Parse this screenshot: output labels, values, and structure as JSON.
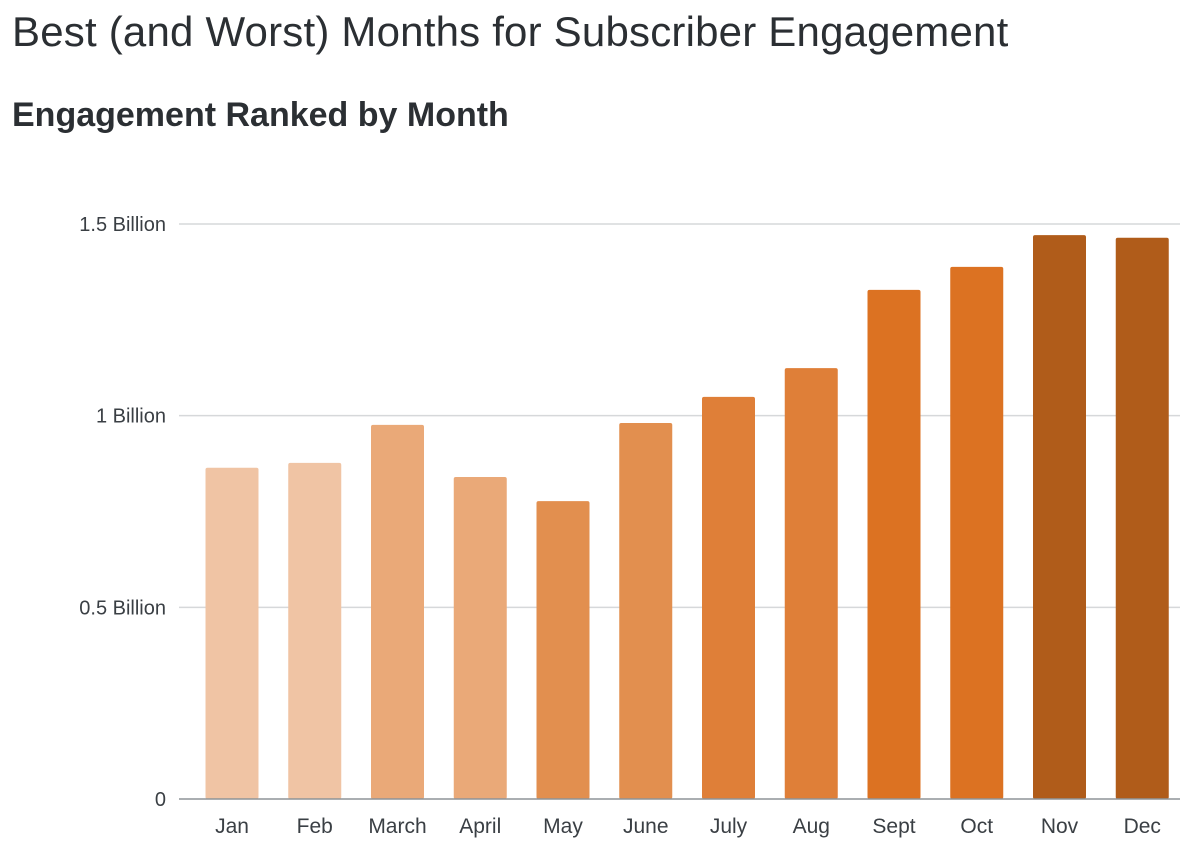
{
  "title": "Best (and Worst) Months for Subscriber Engagement",
  "subtitle": "Engagement Ranked by Month",
  "chart_data": {
    "type": "bar",
    "title": "Engagement Ranked by Month",
    "xlabel": "",
    "ylabel": "",
    "categories": [
      "Jan",
      "Feb",
      "March",
      "April",
      "May",
      "June",
      "July",
      "Aug",
      "Sept",
      "Oct",
      "Nov",
      "Dec"
    ],
    "values": [
      0.864,
      0.877,
      0.976,
      0.84,
      0.777,
      0.981,
      1.049,
      1.124,
      1.328,
      1.388,
      1.471,
      1.464
    ],
    "unit": "billion",
    "ylim": [
      0,
      1.5
    ],
    "yticks": [
      {
        "value": 0,
        "label": "0"
      },
      {
        "value": 0.5,
        "label": "0.5 Billion"
      },
      {
        "value": 1,
        "label": "1 Billion"
      },
      {
        "value": 1.5,
        "label": "1.5 Billion"
      }
    ],
    "grid": true,
    "legend": "none",
    "colors": [
      "#f0c4a4",
      "#f0c4a4",
      "#eaa978",
      "#eaa978",
      "#e28f4f",
      "#e28f4f",
      "#df7f38",
      "#df7f38",
      "#dc7222",
      "#dc7222",
      "#b05c1a",
      "#b05c1a"
    ]
  }
}
